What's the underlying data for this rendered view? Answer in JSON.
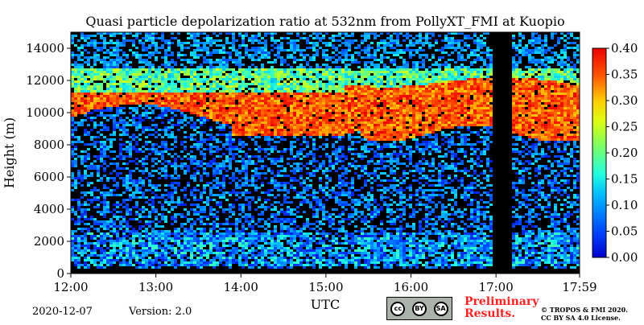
{
  "chart_data": {
    "type": "heatmap",
    "title": "Quasi particle depolarization ratio at 532nm from PollyXT_FMI at Kuopio",
    "xlabel": "UTC",
    "ylabel": "Height (m)",
    "x_ticks": [
      "12:00",
      "13:00",
      "14:00",
      "15:00",
      "16:00",
      "17:00",
      "17:59"
    ],
    "x_range_hours": [
      12.0,
      17.983
    ],
    "y_ticks": [
      0,
      2000,
      4000,
      6000,
      8000,
      10000,
      12000,
      14000
    ],
    "y_tick_labels": [
      "0",
      "2000",
      "4000",
      "6000",
      "8000",
      "10000",
      "12000",
      "14000"
    ],
    "ylim": [
      0,
      15000
    ],
    "colorbar": {
      "range": [
        0.0,
        0.4
      ],
      "ticks": [
        "0.00",
        "0.05",
        "0.10",
        "0.15",
        "0.20",
        "0.25",
        "0.30",
        "0.35",
        "0.40"
      ],
      "colormap": "jet"
    },
    "data_gap_utc": [
      16.97,
      17.18
    ],
    "features": [
      {
        "name": "cirrus layer",
        "time_utc": [
          15.2,
          17.98
        ],
        "height_m": [
          8500,
          12000
        ],
        "depol": 0.38
      },
      {
        "name": "cirrus layer (west)",
        "time_utc": [
          12.0,
          15.5
        ],
        "height_m": [
          8500,
          11200
        ],
        "depol": 0.36
      },
      {
        "name": "upper thin layer",
        "time_utc": [
          12.0,
          17.9
        ],
        "height_m": [
          11500,
          12700
        ],
        "depol": 0.2
      },
      {
        "name": "boundary layer",
        "time_utc": [
          12.0,
          17.98
        ],
        "height_m": [
          500,
          2600
        ],
        "depol": 0.1
      }
    ]
  },
  "footer": {
    "date": "2020-12-07",
    "version": "Version: 2.0",
    "license_badge": {
      "icons": [
        "cc",
        "by",
        "sa"
      ],
      "labels": [
        "BY",
        "SA"
      ]
    },
    "preliminary": [
      "Preliminary",
      "Results."
    ],
    "copyright": [
      "© TROPOS & FMI 2020.",
      "CC BY SA 4.0 License."
    ]
  },
  "colors": {
    "background_gap": "#000000",
    "frame": "#000000"
  }
}
